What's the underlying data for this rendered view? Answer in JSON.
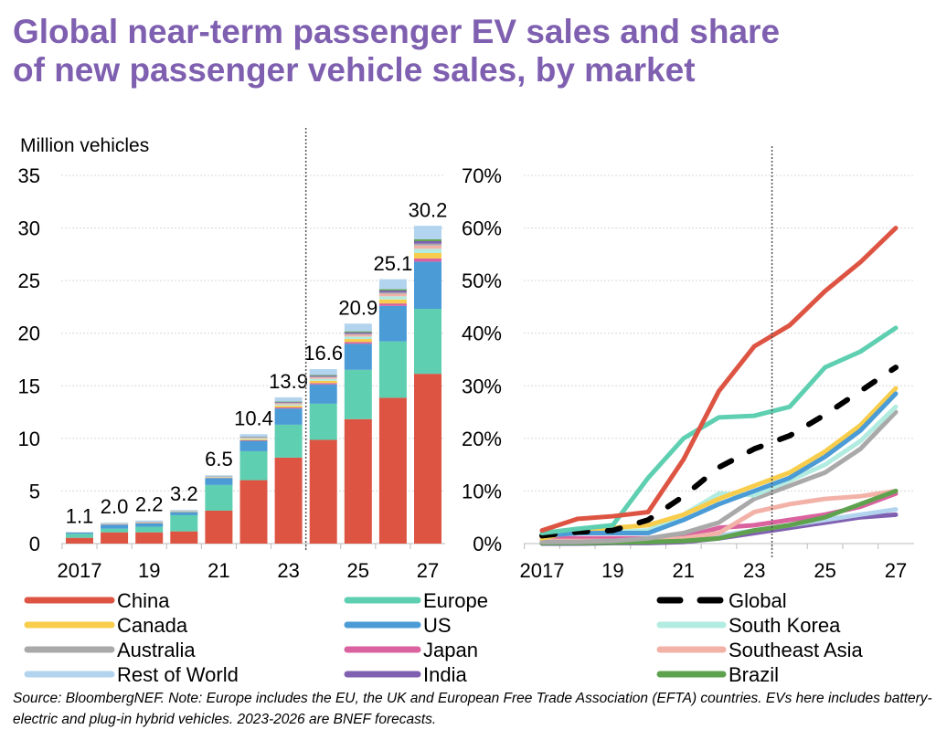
{
  "title": {
    "line1": "Global near-term passenger EV sales and share",
    "line2": "of new passenger vehicle sales, by market"
  },
  "source": "Source: BloombergNEF. Note: Europe includes the EU, the UK and European Free Trade Association (EFTA) countries. EVs here includes battery-electric and plug-in hybrid vehicles. 2023-2026 are BNEF forecasts.",
  "legend": [
    {
      "name": "China",
      "color": "#dd5443",
      "dash": false
    },
    {
      "name": "Europe",
      "color": "#5ecfb1",
      "dash": false
    },
    {
      "name": "Global",
      "color": "#000000",
      "dash": true
    },
    {
      "name": "Canada",
      "color": "#f7cd4b",
      "dash": false
    },
    {
      "name": "US",
      "color": "#4a9bd6",
      "dash": false
    },
    {
      "name": "South Korea",
      "color": "#b2ebe0",
      "dash": false
    },
    {
      "name": "Australia",
      "color": "#a9a9a9",
      "dash": false
    },
    {
      "name": "Japan",
      "color": "#d9629f",
      "dash": false
    },
    {
      "name": "Southeast Asia",
      "color": "#f3b2a8",
      "dash": false
    },
    {
      "name": "Rest of World",
      "color": "#b3d4ee",
      "dash": false
    },
    {
      "name": "India",
      "color": "#8060b0",
      "dash": false
    },
    {
      "name": "Brazil",
      "color": "#5ea24e",
      "dash": false
    }
  ],
  "chart_data": [
    {
      "type": "bar",
      "stacked": true,
      "ylabel": "Million vehicles",
      "ylim": [
        0,
        35
      ],
      "yticks": [
        0,
        5,
        10,
        15,
        20,
        25,
        30,
        35
      ],
      "grid": true,
      "categories": [
        2017,
        2018,
        2019,
        2020,
        2021,
        2022,
        2023,
        2024,
        2025,
        2026,
        2027
      ],
      "xtick_labels": [
        "2017",
        "19",
        "21",
        "23",
        "25",
        "27"
      ],
      "forecast_divider_after": 2023,
      "totals": [
        "1.1",
        "2.0",
        "2.2",
        "3.2",
        "6.5",
        "10.4",
        "13.9",
        "16.6",
        "20.9",
        "25.1",
        "30.2"
      ],
      "series": [
        {
          "name": "China",
          "color": "#dd5443",
          "values": [
            0.55,
            1.07,
            1.07,
            1.16,
            3.13,
            6.03,
            8.17,
            9.86,
            11.83,
            13.86,
            16.14
          ]
        },
        {
          "name": "Europe",
          "color": "#5ecfb1",
          "values": [
            0.38,
            0.35,
            0.53,
            1.54,
            2.44,
            2.75,
            3.13,
            3.44,
            4.69,
            5.36,
            6.18
          ]
        },
        {
          "name": "US",
          "color": "#4a9bd6",
          "values": [
            0.12,
            0.38,
            0.34,
            0.29,
            0.66,
            0.99,
            1.54,
            1.83,
            2.47,
            3.38,
            4.48
          ]
        },
        {
          "name": "Japan",
          "color": "#d9629f",
          "values": [
            0.01,
            0.02,
            0.02,
            0.02,
            0.02,
            0.06,
            0.1,
            0.13,
            0.17,
            0.23,
            0.31
          ]
        },
        {
          "name": "Canada",
          "color": "#f7cd4b",
          "values": [
            0.01,
            0.03,
            0.04,
            0.03,
            0.04,
            0.09,
            0.16,
            0.22,
            0.29,
            0.38,
            0.51
          ]
        },
        {
          "name": "South Korea",
          "color": "#b2ebe0",
          "values": [
            0.01,
            0.02,
            0.03,
            0.03,
            0.03,
            0.08,
            0.13,
            0.18,
            0.23,
            0.3,
            0.41
          ]
        },
        {
          "name": "Southeast Asia",
          "color": "#f3b2a8",
          "values": [
            0,
            0.02,
            0.02,
            0.02,
            0.02,
            0.06,
            0.1,
            0.13,
            0.17,
            0.23,
            0.31
          ]
        },
        {
          "name": "Australia",
          "color": "#a9a9a9",
          "values": [
            0,
            0.01,
            0.01,
            0.01,
            0.01,
            0.03,
            0.05,
            0.07,
            0.1,
            0.13,
            0.17
          ]
        },
        {
          "name": "India",
          "color": "#8060b0",
          "values": [
            0,
            0.01,
            0.02,
            0.01,
            0.02,
            0.04,
            0.07,
            0.1,
            0.13,
            0.18,
            0.24
          ]
        },
        {
          "name": "Brazil",
          "color": "#5ea24e",
          "values": [
            0,
            0.01,
            0.01,
            0.01,
            0.01,
            0.03,
            0.05,
            0.07,
            0.1,
            0.13,
            0.17
          ]
        },
        {
          "name": "Rest of World",
          "color": "#b3d4ee",
          "values": [
            0.02,
            0.08,
            0.1,
            0.08,
            0.11,
            0.24,
            0.4,
            0.56,
            0.73,
            0.95,
            1.29
          ]
        }
      ]
    },
    {
      "type": "line",
      "ylim": [
        0,
        70
      ],
      "yticks": [
        "0%",
        "10%",
        "20%",
        "30%",
        "40%",
        "50%",
        "60%",
        "70%"
      ],
      "grid": true,
      "x": [
        2017,
        2018,
        2019,
        2020,
        2021,
        2022,
        2023,
        2024,
        2025,
        2026,
        2027
      ],
      "xtick_labels": [
        "2017",
        "19",
        "21",
        "23",
        "25",
        "27"
      ],
      "forecast_divider_after": 2023,
      "unit": "%",
      "series": [
        {
          "name": "India",
          "color": "#8060b0",
          "values": [
            0,
            0,
            0.1,
            0.1,
            0.3,
            1,
            2,
            3,
            4,
            5,
            5.5
          ]
        },
        {
          "name": "Rest of World",
          "color": "#b3d4ee",
          "values": [
            0.3,
            0.3,
            0.5,
            0.5,
            0.8,
            1.5,
            2.5,
            3.5,
            4.5,
            5.5,
            6.5
          ]
        },
        {
          "name": "Japan",
          "color": "#d9629f",
          "values": [
            1,
            1,
            1,
            1,
            1.2,
            3,
            3.5,
            4.5,
            5.5,
            7,
            9.5
          ]
        },
        {
          "name": "Southeast Asia",
          "color": "#f3b2a8",
          "values": [
            0.5,
            0.5,
            0.5,
            0.5,
            1,
            2,
            6,
            7.5,
            8.5,
            9,
            10
          ]
        },
        {
          "name": "Brazil",
          "color": "#5ea24e",
          "values": [
            0.1,
            0.1,
            0.2,
            0.3,
            0.5,
            1,
            2.5,
            3.5,
            5,
            7.5,
            10
          ]
        },
        {
          "name": "Australia",
          "color": "#a9a9a9",
          "values": [
            0.3,
            0.3,
            0.5,
            1,
            2,
            4,
            8.5,
            11,
            13.5,
            18,
            25
          ]
        },
        {
          "name": "South Korea",
          "color": "#b2ebe0",
          "values": [
            1.5,
            2,
            2.2,
            2.5,
            5.5,
            9.5,
            9.2,
            12,
            15,
            19.5,
            26
          ]
        },
        {
          "name": "Canada",
          "color": "#f7cd4b",
          "values": [
            1,
            2.5,
            3,
            3.5,
            5.5,
            8.5,
            11,
            13.5,
            17.5,
            22.5,
            29.5
          ]
        },
        {
          "name": "US",
          "color": "#4a9bd6",
          "values": [
            1.5,
            2,
            2,
            2,
            4.5,
            7.5,
            10,
            12.5,
            16.5,
            21.5,
            28.5
          ]
        },
        {
          "name": "Global",
          "color": "#000000",
          "dash": true,
          "values": [
            1.5,
            2.2,
            2.5,
            4.5,
            9,
            14.5,
            18,
            20.5,
            24.5,
            29,
            33.5
          ]
        },
        {
          "name": "Europe",
          "color": "#5ecfb1",
          "values": [
            2,
            2.8,
            3.5,
            12.5,
            20,
            24,
            24.3,
            26,
            33.5,
            36.5,
            41
          ]
        },
        {
          "name": "China",
          "color": "#dd5443",
          "values": [
            2.5,
            4.7,
            5.2,
            6,
            16,
            29,
            37.5,
            41.5,
            48,
            53.5,
            60
          ]
        }
      ]
    }
  ]
}
